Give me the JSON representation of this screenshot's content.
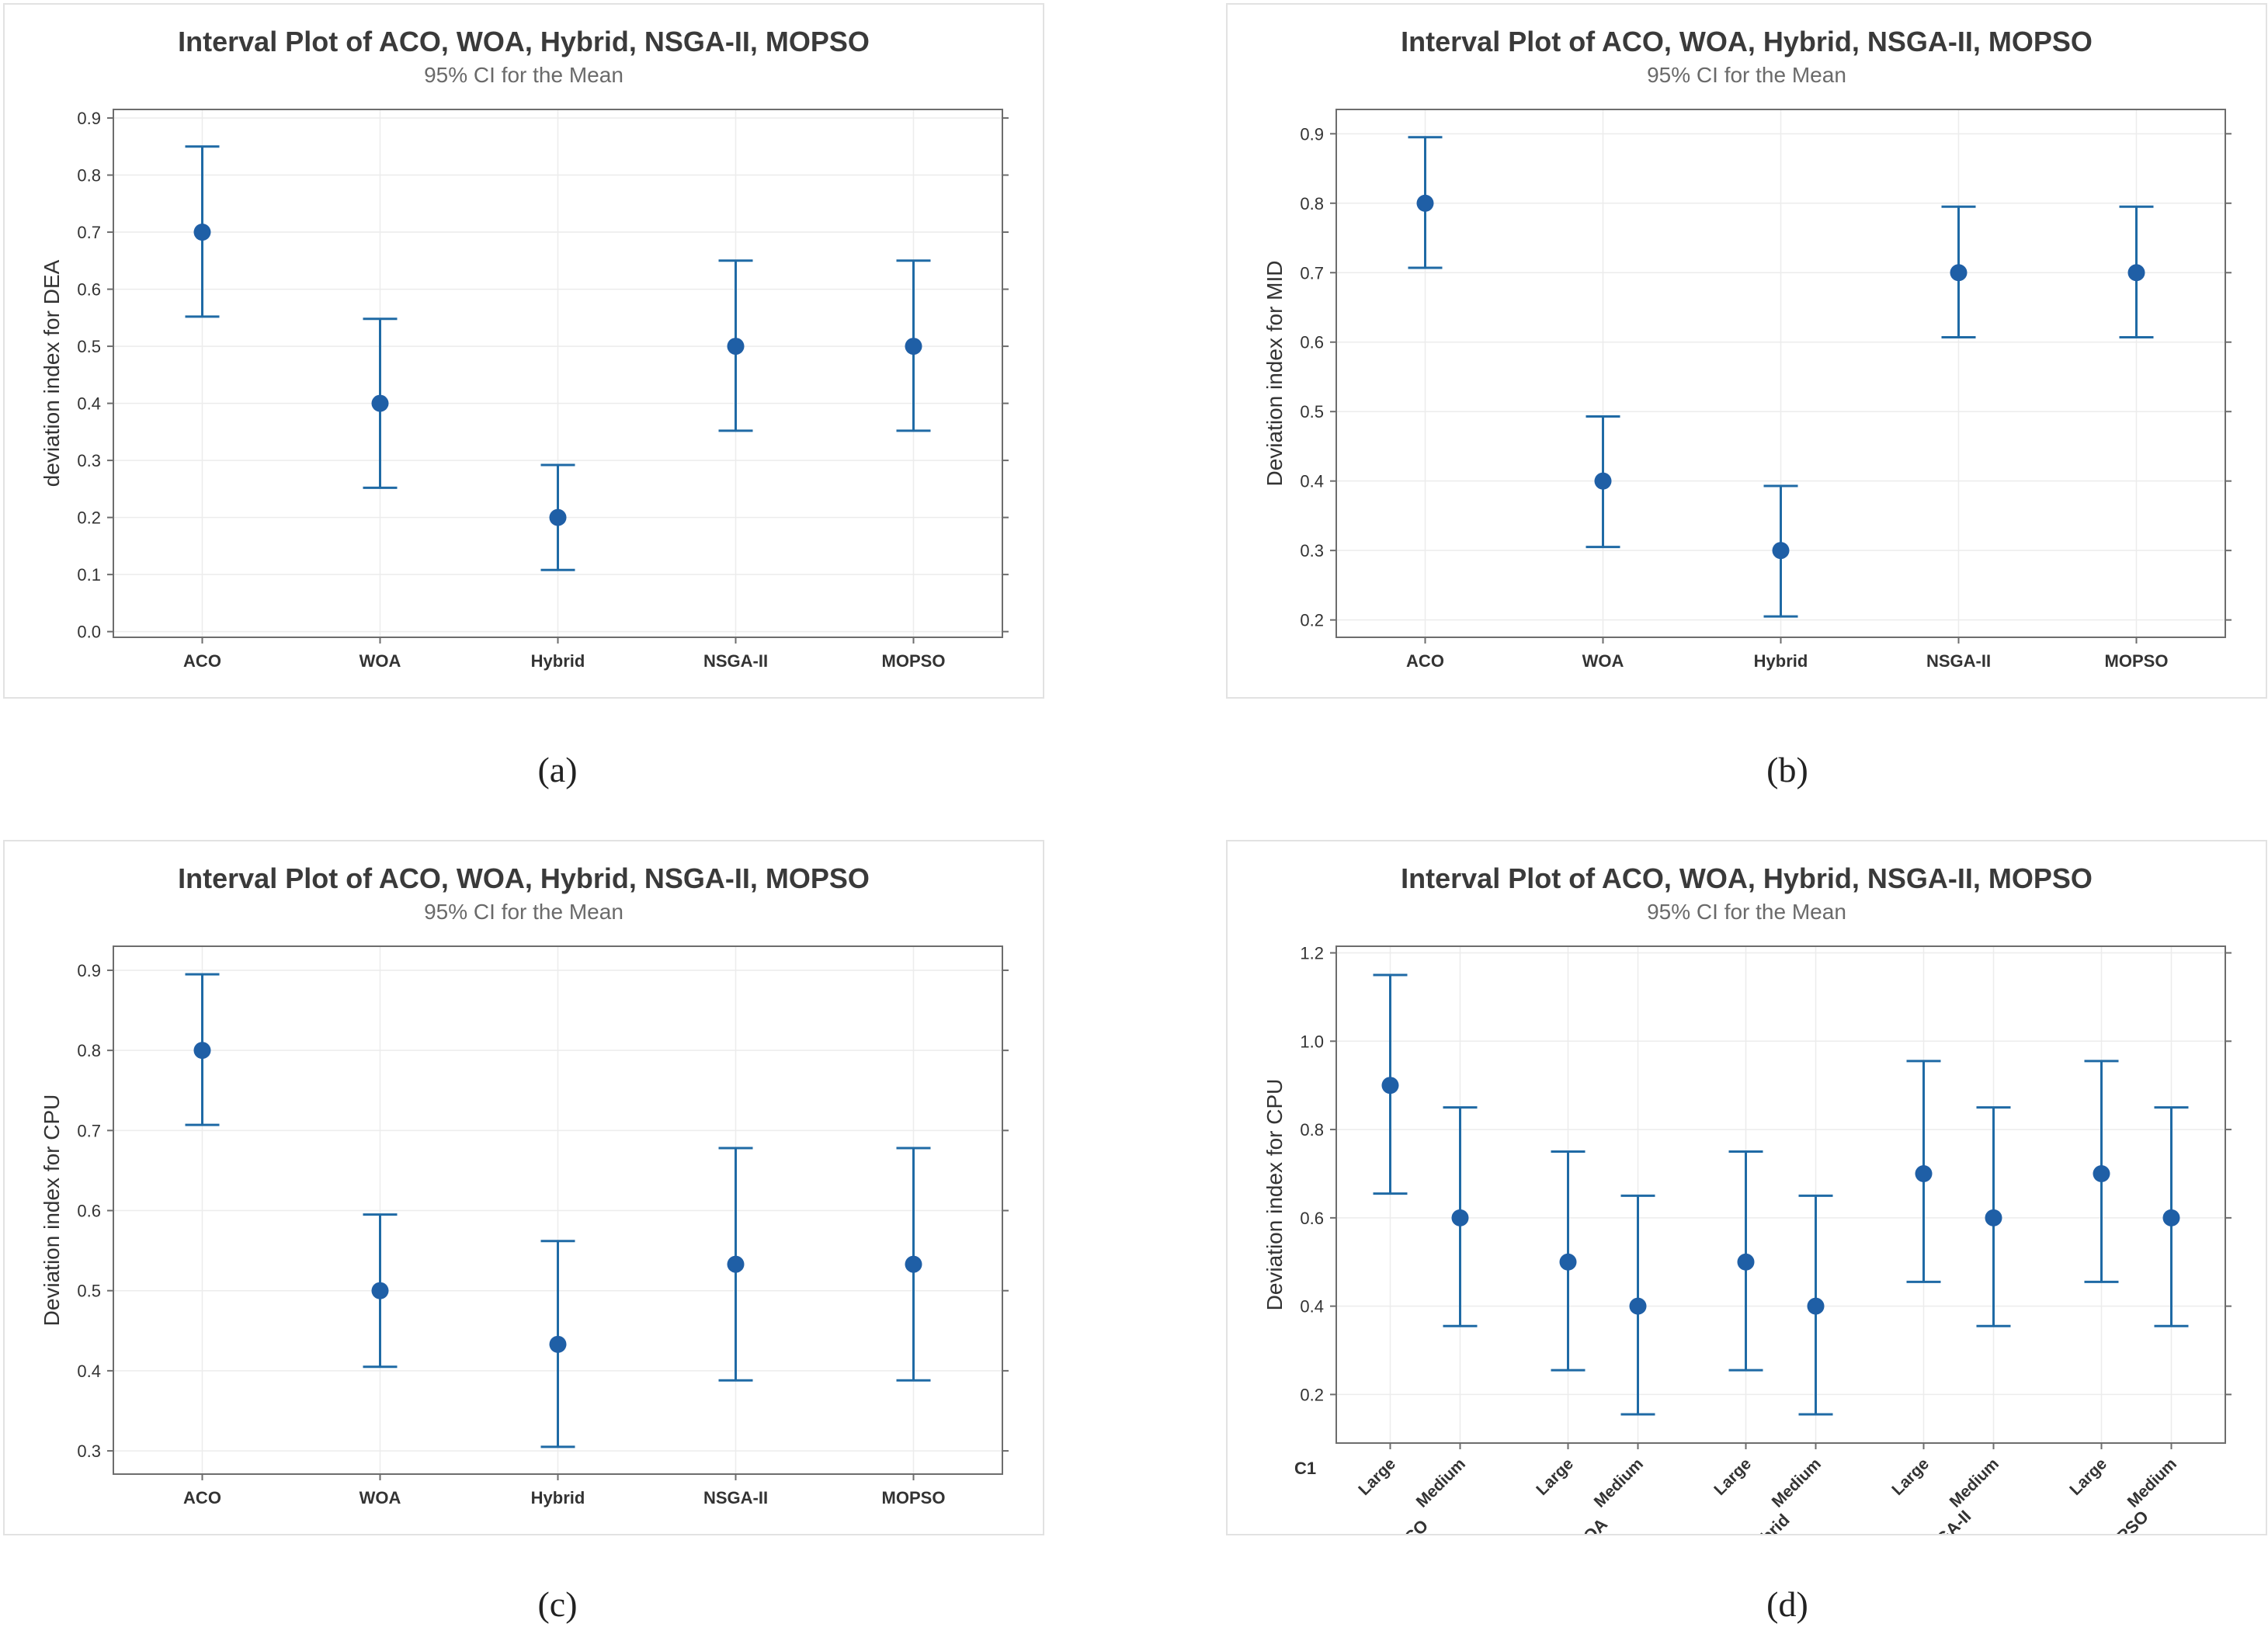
{
  "captions": {
    "a": "(a)",
    "b": "(b)",
    "c": "(c)",
    "d": "(d)"
  },
  "colors": {
    "marker": "#1f5fa6",
    "interval": "#1f6aa5",
    "grid": "#ececec",
    "axis": "#6d6d6d",
    "title": "#3a3a3a",
    "subtitle": "#6a6a6a"
  },
  "chart_data": [
    {
      "id": "a",
      "type": "interval",
      "title": "Interval Plot of ACO, WOA, Hybrid, NSGA-II, MOPSO",
      "subtitle": "95% CI for the Mean",
      "ylabel": "deviation index for DEA",
      "ylim": [
        -0.01,
        0.915
      ],
      "yticks": [
        0.0,
        0.1,
        0.2,
        0.3,
        0.4,
        0.5,
        0.6,
        0.7,
        0.8,
        0.9
      ],
      "ytick_labels": [
        "0.0",
        "0.1",
        "0.2",
        "0.3",
        "0.4",
        "0.5",
        "0.6",
        "0.7",
        "0.8",
        "0.9"
      ],
      "categories": [
        "ACO",
        "WOA",
        "Hybrid",
        "NSGA-II",
        "MOPSO"
      ],
      "mean": [
        0.7,
        0.4,
        0.2,
        0.5,
        0.5
      ],
      "lower": [
        0.552,
        0.252,
        0.108,
        0.352,
        0.352
      ],
      "upper": [
        0.85,
        0.548,
        0.292,
        0.65,
        0.65
      ]
    },
    {
      "id": "b",
      "type": "interval",
      "title": "Interval Plot of ACO, WOA, Hybrid, NSGA-II, MOPSO",
      "subtitle": "95% CI for the Mean",
      "ylabel": "Deviation index for MID",
      "ylim": [
        0.175,
        0.935
      ],
      "yticks": [
        0.2,
        0.3,
        0.4,
        0.5,
        0.6,
        0.7,
        0.8,
        0.9
      ],
      "ytick_labels": [
        "0.2",
        "0.3",
        "0.4",
        "0.5",
        "0.6",
        "0.7",
        "0.8",
        "0.9"
      ],
      "categories": [
        "ACO",
        "WOA",
        "Hybrid",
        "NSGA-II",
        "MOPSO"
      ],
      "mean": [
        0.8,
        0.4,
        0.3,
        0.7,
        0.7
      ],
      "lower": [
        0.707,
        0.305,
        0.205,
        0.607,
        0.607
      ],
      "upper": [
        0.895,
        0.493,
        0.393,
        0.795,
        0.795
      ]
    },
    {
      "id": "c",
      "type": "interval",
      "title": "Interval Plot of ACO, WOA, Hybrid, NSGA-II, MOPSO",
      "subtitle": "95% CI for the Mean",
      "ylabel": "Deviation index for CPU",
      "ylim": [
        0.271,
        0.93
      ],
      "yticks": [
        0.3,
        0.4,
        0.5,
        0.6,
        0.7,
        0.8,
        0.9
      ],
      "ytick_labels": [
        "0.3",
        "0.4",
        "0.5",
        "0.6",
        "0.7",
        "0.8",
        "0.9"
      ],
      "categories": [
        "ACO",
        "WOA",
        "Hybrid",
        "NSGA-II",
        "MOPSO"
      ],
      "mean": [
        0.8,
        0.5,
        0.433,
        0.533,
        0.533
      ],
      "lower": [
        0.707,
        0.405,
        0.305,
        0.388,
        0.388
      ],
      "upper": [
        0.895,
        0.595,
        0.562,
        0.678,
        0.678
      ]
    },
    {
      "id": "d",
      "type": "interval",
      "title": "Interval Plot of ACO, WOA, Hybrid, NSGA-II, MOPSO",
      "subtitle": "95% CI for the Mean",
      "ylabel": "Deviation index for CPU",
      "ylim": [
        0.09,
        1.215
      ],
      "yticks": [
        0.2,
        0.4,
        0.6,
        0.8,
        1.0,
        1.2
      ],
      "ytick_labels": [
        "0.2",
        "0.4",
        "0.6",
        "0.8",
        "1.0",
        "1.2"
      ],
      "grouping_label": "C1",
      "groups": [
        "ACO",
        "WOA",
        "Hybrid",
        "NSGA-II",
        "MOPSO"
      ],
      "subcategories": [
        "Large",
        "Medium"
      ],
      "mean": [
        0.9,
        0.6,
        0.5,
        0.4,
        0.5,
        0.4,
        0.7,
        0.6,
        0.7,
        0.6
      ],
      "lower": [
        0.655,
        0.355,
        0.255,
        0.155,
        0.255,
        0.155,
        0.455,
        0.355,
        0.455,
        0.355
      ],
      "upper": [
        1.15,
        0.85,
        0.75,
        0.65,
        0.75,
        0.65,
        0.955,
        0.85,
        0.955,
        0.85
      ]
    }
  ]
}
